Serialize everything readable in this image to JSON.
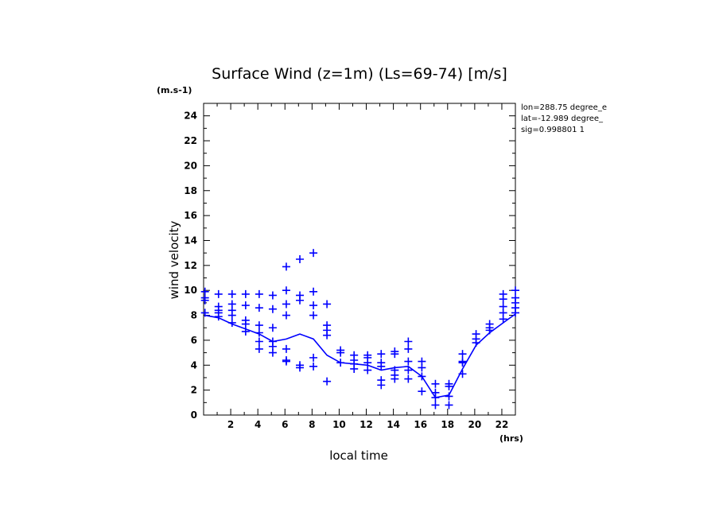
{
  "chart_data": {
    "type": "scatter",
    "title": "Surface Wind (z=1m) (Ls=69-74) [m/s]",
    "ylabel": "wind velocity",
    "xlabel": "local time",
    "y_unit": "(m.s-1)",
    "x_unit": "(hrs)",
    "info": [
      "lon=288.75 degree_e",
      "lat=-12.989 degree_",
      "sig=0.998801 1"
    ],
    "xlim": [
      0,
      23
    ],
    "ylim": [
      0,
      25
    ],
    "x_ticks": [
      2,
      4,
      6,
      8,
      10,
      12,
      14,
      16,
      18,
      20,
      22
    ],
    "y_ticks": [
      0,
      2,
      4,
      6,
      8,
      10,
      12,
      14,
      16,
      18,
      20,
      22,
      24
    ],
    "grid": false,
    "color": "#0000ff",
    "series": [
      {
        "style": "line",
        "x": [
          0.1,
          1.1,
          2.1,
          3.1,
          4.1,
          5.1,
          6.1,
          7.1,
          8.1,
          9.1,
          10.1,
          11.1,
          12.1,
          13.1,
          14.1,
          15.1,
          16.1,
          17.1,
          18.1,
          19.1,
          20.1,
          21.1,
          22.1,
          23.0
        ],
        "y": [
          8.0,
          7.8,
          7.3,
          6.9,
          6.5,
          5.9,
          6.1,
          6.5,
          6.1,
          4.8,
          4.2,
          4.1,
          4.0,
          3.6,
          3.8,
          3.9,
          3.1,
          1.4,
          1.6,
          3.7,
          5.6,
          6.6,
          7.4,
          8.1
        ]
      },
      {
        "style": "markers",
        "x": [
          0.1,
          0.1,
          0.1,
          0.1,
          1.1,
          1.1,
          1.1,
          1.1,
          1.1,
          2.1,
          2.1,
          2.1,
          2.1,
          2.1,
          3.1,
          3.1,
          3.1,
          3.1,
          3.1,
          4.1,
          4.1,
          4.1,
          4.1,
          4.1,
          4.1,
          5.1,
          5.1,
          5.1,
          5.1,
          5.1,
          5.1,
          6.1,
          6.1,
          6.1,
          6.1,
          6.1,
          6.1,
          6.1,
          7.1,
          7.1,
          7.1,
          7.1,
          7.1,
          8.1,
          8.1,
          8.1,
          8.1,
          8.1,
          8.1,
          9.1,
          9.1,
          9.1,
          9.1,
          9.1,
          10.1,
          10.1,
          10.1,
          11.1,
          11.1,
          11.1,
          11.1,
          12.1,
          12.1,
          12.1,
          12.1,
          13.1,
          13.1,
          13.1,
          13.1,
          13.1,
          14.1,
          14.1,
          14.1,
          14.1,
          14.1,
          15.1,
          15.1,
          15.1,
          15.1,
          15.1,
          16.1,
          16.1,
          16.1,
          16.1,
          17.1,
          17.1,
          17.1,
          17.1,
          18.1,
          18.1,
          18.1,
          18.1,
          19.1,
          19.1,
          19.1,
          19.1,
          20.1,
          20.1,
          20.1,
          21.1,
          21.1,
          21.1,
          22.1,
          22.1,
          22.1,
          22.1,
          22.1,
          23.0,
          23.0,
          23.0,
          23.0,
          23.0
        ],
        "y": [
          9.9,
          9.4,
          9.2,
          8.2,
          9.7,
          8.7,
          8.4,
          8.2,
          7.9,
          9.7,
          8.9,
          8.4,
          8.0,
          7.4,
          9.7,
          8.8,
          7.6,
          7.3,
          6.7,
          9.7,
          8.6,
          7.2,
          6.6,
          5.9,
          5.3,
          9.6,
          8.5,
          7.0,
          5.9,
          5.5,
          5.0,
          11.9,
          10.0,
          8.9,
          8.0,
          5.3,
          4.4,
          4.3,
          12.5,
          9.6,
          9.2,
          4.0,
          3.8,
          13.0,
          9.9,
          8.8,
          8.0,
          4.6,
          3.9,
          8.9,
          7.2,
          6.8,
          6.4,
          2.7,
          5.2,
          5.0,
          4.2,
          4.8,
          4.4,
          4.1,
          3.7,
          4.8,
          4.6,
          4.2,
          3.6,
          4.9,
          4.2,
          3.9,
          2.8,
          2.4,
          5.1,
          4.9,
          3.6,
          3.2,
          2.9,
          5.9,
          5.3,
          4.3,
          3.6,
          2.9,
          4.3,
          3.8,
          3.1,
          1.9,
          2.5,
          1.8,
          1.4,
          0.8,
          2.5,
          2.3,
          1.5,
          0.8,
          4.9,
          4.3,
          4.2,
          3.3,
          6.5,
          6.1,
          5.8,
          7.3,
          7.0,
          6.8,
          9.7,
          9.3,
          8.7,
          8.2,
          7.7,
          10.0,
          9.4,
          9.0,
          8.6,
          8.2
        ]
      }
    ]
  }
}
